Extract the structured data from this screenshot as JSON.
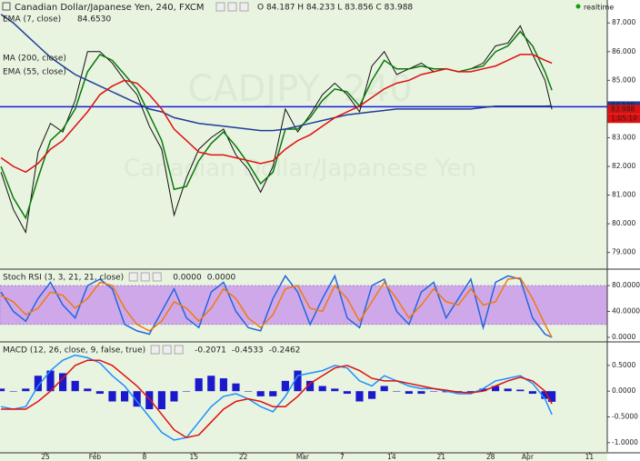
{
  "header": {
    "title": "Canadian Dollar/Japanese Yen, 240, FXCM",
    "ohlc": "O 84.187 H 84.233 L 83.856 C 83.988",
    "status": "realtime",
    "watermark": "CADJPY, 240",
    "watermark_name": "Canadian Dollar/Japanese Yen",
    "countdown": "1:05:10"
  },
  "chart_data": [
    {
      "type": "line",
      "x": [
        -0.9,
        -0.65,
        -0.4,
        -0.15,
        0.1,
        0.35,
        0.6,
        0.85,
        1.1,
        1.35,
        1.6,
        1.85,
        2.1,
        2.35,
        2.6,
        2.85,
        3.1,
        3.35,
        3.6,
        3.85,
        4.1,
        4.35,
        4.6,
        4.85,
        5.1,
        5.35,
        5.6,
        5.85,
        6.1,
        6.35,
        6.6,
        6.85,
        7.1,
        7.35,
        7.6,
        7.85,
        8.1,
        8.35,
        8.6,
        8.85,
        9.1,
        9.35,
        9.6,
        9.85,
        10.1,
        10.24
      ],
      "xlim": [
        -0.92,
        11.36
      ],
      "ylim": [
        78.45,
        87.8
      ],
      "yticks": [
        {
          "value": 79,
          "label": "79.000"
        },
        {
          "value": 80,
          "label": "80.000"
        },
        {
          "value": 81,
          "label": "81.000"
        },
        {
          "value": 82,
          "label": "82.000"
        },
        {
          "value": 83,
          "label": "83.000"
        },
        {
          "value": 85,
          "label": "85.000"
        },
        {
          "value": 86,
          "label": "86.000"
        },
        {
          "value": 87,
          "label": "87.000"
        }
      ],
      "grid": false,
      "hline": 84.08,
      "hline_color": "#1a1adb",
      "series": [
        {
          "color": "#111111",
          "values": [
            81.8,
            80.5,
            79.7,
            82.5,
            83.5,
            83.2,
            84.3,
            86.0,
            86.0,
            85.6,
            85.0,
            84.5,
            83.4,
            82.6,
            80.3,
            81.6,
            82.6,
            83.0,
            83.3,
            82.4,
            81.9,
            81.1,
            82.0,
            84.0,
            83.2,
            83.8,
            84.5,
            84.9,
            84.5,
            83.9,
            85.5,
            86.0,
            85.2,
            85.4,
            85.6,
            85.3,
            85.4,
            85.3,
            85.4,
            85.6,
            86.2,
            86.3,
            86.9,
            85.9,
            85.0,
            83.99
          ]
        },
        {
          "name": "EMA (7, close)",
          "color": "#0a7a0a",
          "value_label": "84.6530",
          "values": [
            82.0,
            80.9,
            80.2,
            81.6,
            82.9,
            83.3,
            84.0,
            85.3,
            85.9,
            85.7,
            85.2,
            84.7,
            83.8,
            82.9,
            81.2,
            81.3,
            82.2,
            82.8,
            83.2,
            82.7,
            82.1,
            81.4,
            81.8,
            83.3,
            83.3,
            83.7,
            84.3,
            84.7,
            84.6,
            84.1,
            85.0,
            85.7,
            85.4,
            85.4,
            85.5,
            85.4,
            85.4,
            85.3,
            85.4,
            85.5,
            86.0,
            86.2,
            86.7,
            86.2,
            85.3,
            84.653
          ]
        },
        {
          "name": "MA (200, close)",
          "color": "#1f3d99",
          "values": [
            87.3,
            87.0,
            86.6,
            86.2,
            85.8,
            85.5,
            85.2,
            85.0,
            84.8,
            84.6,
            84.4,
            84.2,
            84.0,
            83.9,
            83.7,
            83.6,
            83.5,
            83.45,
            83.4,
            83.35,
            83.3,
            83.25,
            83.25,
            83.3,
            83.4,
            83.5,
            83.6,
            83.7,
            83.8,
            83.85,
            83.9,
            83.95,
            84.0,
            84.0,
            84.0,
            84.0,
            84.0,
            84.0,
            84.0,
            84.05,
            84.1,
            84.1,
            84.1,
            84.1,
            84.1,
            84.11
          ]
        },
        {
          "name": "EMA (55, close)",
          "color": "#e01010",
          "values": [
            82.3,
            82.0,
            81.8,
            82.1,
            82.6,
            82.9,
            83.4,
            83.9,
            84.5,
            84.8,
            85.0,
            84.9,
            84.5,
            84.0,
            83.3,
            82.9,
            82.5,
            82.4,
            82.4,
            82.3,
            82.2,
            82.1,
            82.2,
            82.6,
            82.9,
            83.1,
            83.4,
            83.7,
            83.9,
            84.1,
            84.4,
            84.7,
            84.9,
            85.0,
            85.2,
            85.3,
            85.4,
            85.3,
            85.3,
            85.4,
            85.5,
            85.7,
            85.9,
            85.9,
            85.7,
            85.6
          ]
        }
      ],
      "markers": [
        {
          "value": 84.108,
          "label": "84.108",
          "color": "#1f3d99"
        },
        {
          "value": 83.988,
          "label": "83.988",
          "color": "#e01010"
        }
      ]
    },
    {
      "type": "line",
      "title": "Stoch RSI (3, 3, 21, 21, close)",
      "x": [
        -0.9,
        -0.65,
        -0.4,
        -0.15,
        0.1,
        0.35,
        0.6,
        0.85,
        1.1,
        1.35,
        1.6,
        1.85,
        2.1,
        2.35,
        2.6,
        2.85,
        3.1,
        3.35,
        3.6,
        3.85,
        4.1,
        4.35,
        4.6,
        4.85,
        5.1,
        5.35,
        5.6,
        5.85,
        6.1,
        6.35,
        6.6,
        6.85,
        7.1,
        7.35,
        7.6,
        7.85,
        8.1,
        8.35,
        8.6,
        8.85,
        9.1,
        9.35,
        9.6,
        9.85,
        10.1,
        10.24
      ],
      "xlim": [
        -0.92,
        11.36
      ],
      "ylim": [
        -5.6,
        104
      ],
      "yticks": [
        {
          "value": 0,
          "label": "0.0000"
        },
        {
          "value": 40,
          "label": "40.0000"
        },
        {
          "value": 80,
          "label": "80.0000"
        }
      ],
      "band": [
        20,
        80
      ],
      "band_color": "#cfa8ea",
      "series": [
        {
          "color": "#2266dd",
          "value_label": "0.0000",
          "values": [
            70,
            40,
            25,
            60,
            85,
            50,
            30,
            80,
            90,
            75,
            20,
            10,
            5,
            40,
            75,
            30,
            15,
            70,
            85,
            40,
            15,
            10,
            60,
            95,
            70,
            20,
            60,
            95,
            30,
            15,
            80,
            90,
            40,
            20,
            70,
            85,
            30,
            60,
            90,
            15,
            85,
            95,
            90,
            30,
            5,
            0
          ]
        },
        {
          "color": "#f07a10",
          "value_label": "0.0000",
          "values": [
            65,
            55,
            35,
            45,
            70,
            65,
            45,
            60,
            85,
            80,
            45,
            20,
            10,
            25,
            55,
            45,
            25,
            45,
            75,
            60,
            30,
            15,
            35,
            75,
            80,
            45,
            40,
            80,
            60,
            25,
            55,
            85,
            60,
            30,
            50,
            75,
            55,
            50,
            75,
            50,
            55,
            90,
            92,
            60,
            20,
            0
          ]
        }
      ]
    },
    {
      "type": "line",
      "title": "MACD (12, 26, close, 9, false, true)",
      "x": [
        -0.9,
        -0.65,
        -0.4,
        -0.15,
        0.1,
        0.35,
        0.6,
        0.85,
        1.1,
        1.35,
        1.6,
        1.85,
        2.1,
        2.35,
        2.6,
        2.85,
        3.1,
        3.35,
        3.6,
        3.85,
        4.1,
        4.35,
        4.6,
        4.85,
        5.1,
        5.35,
        5.6,
        5.85,
        6.1,
        6.35,
        6.6,
        6.85,
        7.1,
        7.35,
        7.6,
        7.85,
        8.1,
        8.35,
        8.6,
        8.85,
        9.1,
        9.35,
        9.6,
        9.85,
        10.1,
        10.24
      ],
      "xlim": [
        -0.92,
        11.36
      ],
      "ylim": [
        -1.18,
        0.94
      ],
      "yticks": [
        {
          "value": -1,
          "label": "-1.0000"
        },
        {
          "value": -0.5,
          "label": "-0.5000"
        },
        {
          "value": 0,
          "label": "0.0000"
        },
        {
          "value": 0.5,
          "label": "0.5000"
        }
      ],
      "xticks": [
        {
          "value": 0,
          "label": "25"
        },
        {
          "value": 1,
          "label": "Feb"
        },
        {
          "value": 2,
          "label": "8"
        },
        {
          "value": 3,
          "label": "15"
        },
        {
          "value": 4,
          "label": "22"
        },
        {
          "value": 5.2,
          "label": "Mar"
        },
        {
          "value": 6,
          "label": "7"
        },
        {
          "value": 7,
          "label": "14"
        },
        {
          "value": 8,
          "label": "21"
        },
        {
          "value": 9,
          "label": "28"
        },
        {
          "value": 9.75,
          "label": "Apr"
        },
        {
          "value": 11,
          "label": "11"
        }
      ],
      "series": [
        {
          "type": "bar",
          "color": "#1a1acc",
          "value_label": "-0.2071",
          "values": [
            0.05,
            0,
            0.05,
            0.3,
            0.4,
            0.35,
            0.2,
            0.05,
            -0.05,
            -0.2,
            -0.2,
            -0.3,
            -0.35,
            -0.35,
            -0.2,
            0,
            0.25,
            0.3,
            0.25,
            0.15,
            0,
            -0.1,
            -0.1,
            0.2,
            0.4,
            0.2,
            0.1,
            0.05,
            -0.05,
            -0.2,
            -0.15,
            0.1,
            0,
            -0.05,
            -0.05,
            0,
            -0.02,
            -0.03,
            -0.02,
            0.05,
            0.1,
            0.05,
            0.03,
            -0.05,
            -0.15,
            -0.2071
          ]
        },
        {
          "color": "#1e90ff",
          "value_label": "-0.4533",
          "values": [
            -0.3,
            -0.35,
            -0.3,
            0.1,
            0.4,
            0.6,
            0.7,
            0.65,
            0.55,
            0.3,
            0.1,
            -0.2,
            -0.5,
            -0.8,
            -0.95,
            -0.9,
            -0.6,
            -0.3,
            -0.1,
            -0.05,
            -0.15,
            -0.3,
            -0.4,
            -0.1,
            0.3,
            0.35,
            0.4,
            0.5,
            0.45,
            0.2,
            0.1,
            0.3,
            0.2,
            0.1,
            0.05,
            0.05,
            0.0,
            -0.05,
            -0.05,
            0.05,
            0.2,
            0.25,
            0.3,
            0.15,
            -0.15,
            -0.4533
          ]
        },
        {
          "color": "#e01010",
          "value_label": "-0.2462",
          "values": [
            -0.35,
            -0.35,
            -0.35,
            -0.2,
            0.0,
            0.25,
            0.5,
            0.6,
            0.6,
            0.5,
            0.3,
            0.1,
            -0.15,
            -0.45,
            -0.75,
            -0.9,
            -0.85,
            -0.6,
            -0.35,
            -0.2,
            -0.15,
            -0.2,
            -0.3,
            -0.3,
            -0.1,
            0.15,
            0.3,
            0.45,
            0.5,
            0.4,
            0.25,
            0.2,
            0.2,
            0.15,
            0.1,
            0.05,
            0.02,
            -0.02,
            -0.03,
            0.0,
            0.1,
            0.2,
            0.27,
            0.2,
            0.0,
            -0.2462
          ]
        }
      ]
    }
  ]
}
